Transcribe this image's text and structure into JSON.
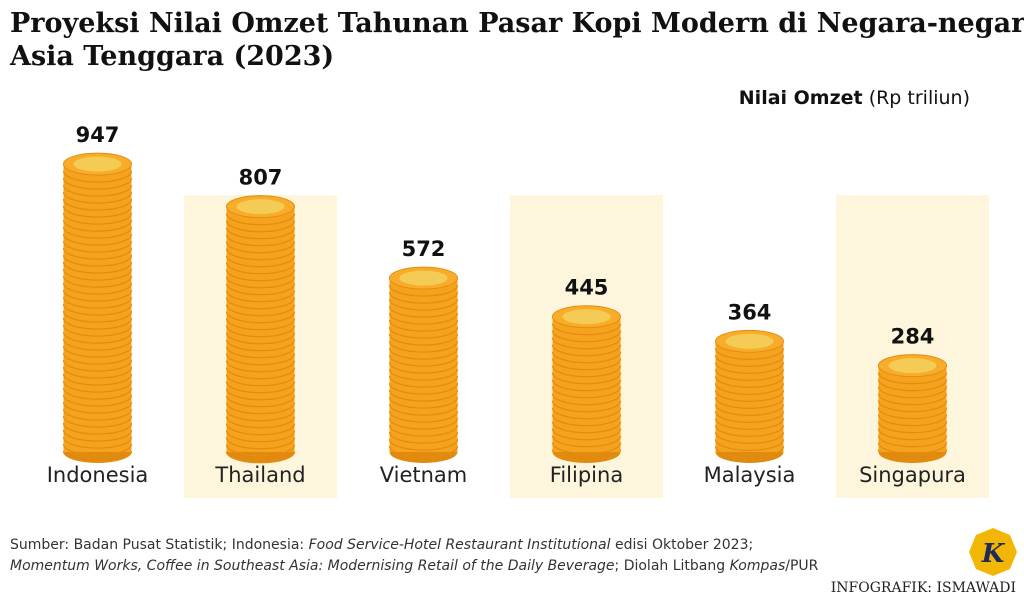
{
  "chart_data": {
    "type": "coin-stack",
    "title": [
      "Proyeksi Nilai Omzet Tahunan Pasar Kopi Modern di Negara-negara",
      "Asia Tenggara (2023)"
    ],
    "unit_label": {
      "name": "Nilai Omzet",
      "unit": "(Rp triliun)"
    },
    "categories": [
      "Indonesia",
      "Thailand",
      "Vietnam",
      "Filipina",
      "Malaysia",
      "Singapura"
    ],
    "values": [
      947,
      807,
      572,
      445,
      364,
      284
    ],
    "color": "#f5a31f",
    "highlight_color": "#fdf6dc",
    "source": [
      [
        "Sumber: Badan Pusat Statistik; Indonesia: ",
        "Food Service-Hotel Restaurant Institutional",
        " edisi Oktober 2023;"
      ],
      [
        "Momentum Works, Coffee in Southeast Asia: Modernising Retail of the Daily Beverage",
        "; Diolah Litbang ",
        "Kompas",
        "/PUR"
      ]
    ],
    "credit": "INFOGRAFIK: ISMAWADI",
    "logo": "K"
  }
}
